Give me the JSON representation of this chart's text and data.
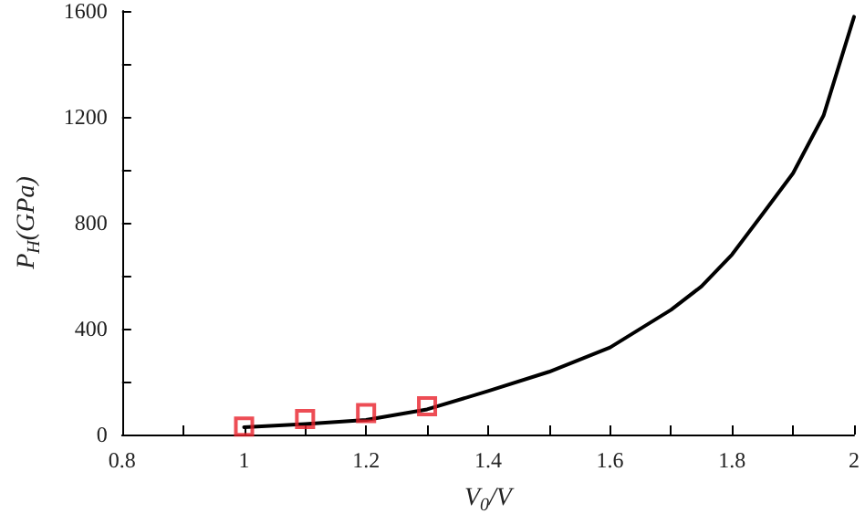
{
  "chart_data": {
    "type": "line",
    "xlabel": "V$_{0}$/V",
    "ylabel": "P$_{H}$(GPa)",
    "series": [
      {
        "color": "#000000",
        "marker": "none",
        "line_style": "solid",
        "x": [
          1.0,
          1.1,
          1.2,
          1.3,
          1.4,
          1.5,
          1.6,
          1.7,
          1.75,
          1.8,
          1.85,
          1.9,
          1.95,
          2.0
        ],
        "values": [
          28,
          40,
          55,
          95,
          164,
          237,
          329,
          471,
          560,
          680,
          833,
          987,
          1205,
          1578
        ]
      },
      {
        "type": "scatter",
        "color": "#e8202a",
        "marker": "square",
        "x": [
          1.0,
          1.1,
          1.2,
          1.3
        ],
        "values": [
          30,
          59,
          81,
          107
        ]
      }
    ],
    "xlim": [
      0.8,
      2
    ],
    "xticks": [
      0.8,
      {
        "value": 0.9,
        "label": null
      },
      1,
      {
        "value": 1.1,
        "label": null
      },
      1.2,
      {
        "value": 1.3,
        "label": null
      },
      1.4,
      {
        "value": 1.5,
        "label": null
      },
      1.6,
      {
        "value": 1.7,
        "label": null
      },
      1.8,
      {
        "value": 1.9,
        "label": null
      },
      2
    ],
    "ylim": [
      0,
      1600
    ],
    "yticks": [
      0,
      {
        "value": 200,
        "label": null
      },
      400,
      {
        "value": 600,
        "label": null
      },
      800,
      {
        "value": 1000,
        "label": null
      },
      1200,
      {
        "value": 1400,
        "label": null
      },
      1600
    ],
    "grid": false
  }
}
